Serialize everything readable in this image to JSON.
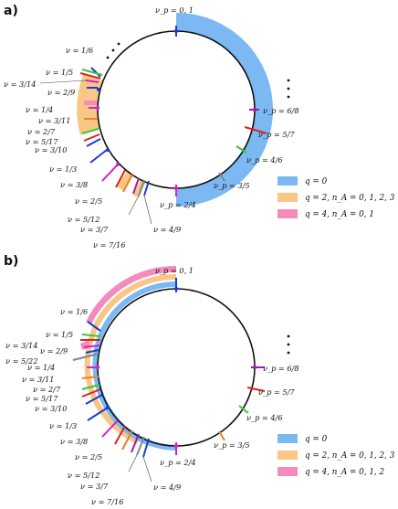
{
  "panels": [
    {
      "tag": "a)",
      "labels": {
        "top": "ν_p = 0, 1",
        "r68": "ν_p = 6/8",
        "r57": "ν_p = 5/7",
        "r46": "ν_p = 4/6",
        "r35": "ν_p = 3/5",
        "r24": "ν_p = 2/4",
        "l16": "ν = 1/6",
        "l15": "ν = 1/5",
        "l314": "ν = 3/14",
        "l29": "ν = 2/9",
        "l14": "ν = 1/4",
        "l311": "ν = 3/11",
        "l27": "ν = 2/7",
        "l517": "ν = 5/17",
        "l310": "ν = 3/10",
        "l13": "ν = 1/3",
        "l38": "ν = 3/8",
        "l25": "ν = 2/5",
        "l512": "ν = 5/12",
        "l37": "ν = 3/7",
        "l716": "ν = 7/16",
        "l49": "ν = 4/9"
      },
      "legend": [
        "q = 0",
        "q = 2, n_A = 0, 1, 2, 3",
        "q = 4, n_A = 0, 1"
      ]
    },
    {
      "tag": "b)",
      "labels": {
        "top": "ν_p = 0, 1",
        "r68": "ν_p = 6/8",
        "r57": "ν_p = 5/7",
        "r46": "ν_p = 4/6",
        "r35": "ν_p = 3/5",
        "r24": "ν_p = 2/4",
        "l16": "ν = 1/6",
        "l15": "ν = 1/5",
        "l314": "ν = 3/14",
        "l29": "ν = 2/9",
        "l522": "ν = 5/22",
        "l14": "ν = 1/4",
        "l311": "ν = 3/11",
        "l27": "ν = 2/7",
        "l517": "ν = 5/17",
        "l310": "ν = 3/10",
        "l13": "ν = 1/3",
        "l38": "ν = 3/8",
        "l25": "ν = 2/5",
        "l512": "ν = 5/12",
        "l37": "ν = 3/7",
        "l716": "ν = 7/16",
        "l49": "ν = 4/9"
      },
      "legend": [
        "q = 0",
        "q = 2, n_A = 0, 1, 2, 3",
        "q = 4, n_A = 0, 1, 2"
      ]
    }
  ],
  "colors": {
    "blue": "#7cb9f2",
    "orange": "#f9c785",
    "pink": "#f48bbb"
  }
}
